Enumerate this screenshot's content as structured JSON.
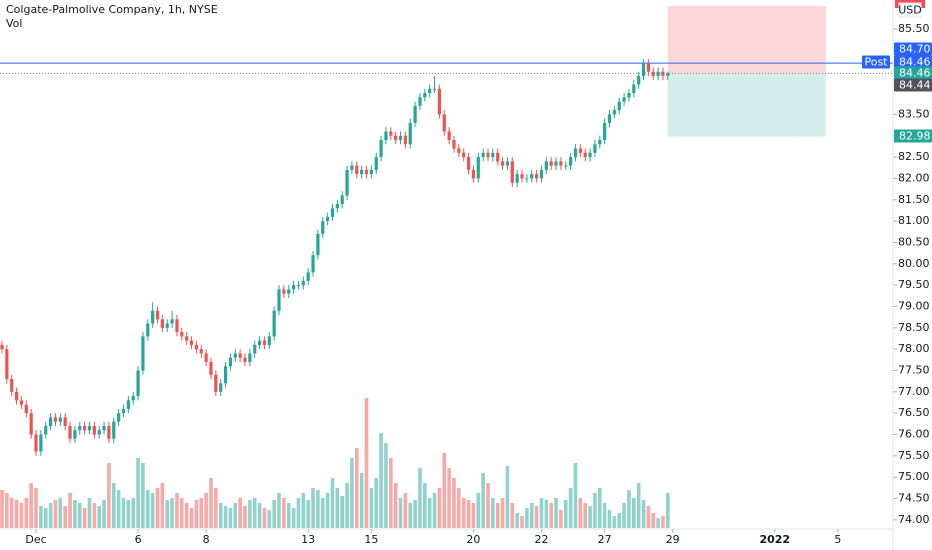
{
  "chart_data": {
    "type": "candlestick",
    "title": "Colgate-Palmolive Company, 1h, NYSE",
    "volume_label": "Vol",
    "currency": "USD",
    "up_color": "#26a69a",
    "down_color": "#ef5350",
    "x": [
      0,
      1,
      2,
      3,
      4,
      5,
      6,
      7,
      8,
      9,
      10,
      11,
      12,
      13,
      14,
      15,
      16,
      17,
      18,
      19,
      20,
      21,
      22,
      23,
      24,
      25,
      26,
      27,
      28,
      29,
      30,
      31,
      32,
      33,
      34,
      35,
      36,
      37,
      38,
      39,
      40,
      41,
      42,
      43,
      44,
      45,
      46,
      47,
      48,
      49,
      50,
      51,
      52,
      53,
      54,
      55,
      56,
      57,
      58,
      59,
      60,
      61,
      62,
      63,
      64,
      65,
      66,
      67,
      68,
      69,
      70,
      71,
      72,
      73,
      74,
      75,
      76,
      77,
      78,
      79,
      80,
      81,
      82,
      83,
      84,
      85,
      86,
      87,
      88,
      89,
      90,
      91,
      92,
      93,
      94,
      95,
      96,
      97,
      98,
      99,
      100,
      101,
      102,
      103,
      104,
      105,
      106,
      107,
      108,
      109,
      110,
      111,
      112,
      113,
      114,
      115,
      116,
      117,
      118,
      119,
      120,
      121,
      122,
      123,
      124,
      125,
      126,
      127,
      128,
      129,
      130,
      131,
      132,
      133,
      134,
      135,
      136,
      137
    ],
    "open": [
      78.1,
      78.0,
      77.3,
      77.0,
      76.8,
      76.7,
      76.5,
      76.0,
      75.6,
      76.0,
      76.2,
      76.4,
      76.3,
      76.4,
      76.2,
      75.9,
      76.1,
      76.2,
      76.1,
      76.2,
      76.0,
      76.1,
      76.2,
      75.9,
      76.3,
      76.5,
      76.6,
      76.8,
      76.9,
      77.5,
      78.3,
      78.6,
      78.9,
      78.7,
      78.5,
      78.6,
      78.7,
      78.4,
      78.3,
      78.2,
      78.1,
      78.0,
      77.9,
      77.7,
      77.4,
      77.0,
      77.2,
      77.6,
      77.8,
      77.9,
      77.8,
      77.7,
      77.9,
      78.1,
      78.2,
      78.1,
      78.3,
      78.9,
      79.4,
      79.3,
      79.4,
      79.5,
      79.5,
      79.6,
      79.8,
      80.2,
      80.7,
      81.0,
      81.1,
      81.3,
      81.4,
      81.6,
      82.2,
      82.3,
      82.1,
      82.2,
      82.1,
      82.2,
      82.5,
      82.9,
      83.1,
      83.0,
      82.9,
      83.0,
      82.8,
      83.3,
      83.7,
      83.9,
      84.0,
      84.1,
      84.1,
      83.5,
      83.1,
      82.9,
      82.7,
      82.6,
      82.5,
      82.2,
      82.0,
      82.5,
      82.6,
      82.5,
      82.6,
      82.4,
      82.3,
      82.4,
      81.9,
      82.1,
      82.0,
      82.0,
      82.1,
      82.0,
      82.2,
      82.4,
      82.3,
      82.4,
      82.3,
      82.3,
      82.5,
      82.7,
      82.6,
      82.5,
      82.6,
      82.8,
      82.9,
      83.3,
      83.5,
      83.6,
      83.8,
      83.9,
      84.0,
      84.2,
      84.4,
      84.7,
      84.5,
      84.4,
      84.5,
      84.4
    ],
    "high": [
      78.2,
      78.1,
      77.4,
      77.1,
      76.9,
      76.8,
      76.6,
      76.1,
      76.1,
      76.3,
      76.5,
      76.5,
      76.5,
      76.5,
      76.3,
      76.2,
      76.3,
      76.3,
      76.3,
      76.3,
      76.2,
      76.3,
      76.3,
      76.4,
      76.6,
      76.7,
      76.9,
      77.0,
      77.6,
      78.4,
      78.7,
      79.1,
      79.0,
      78.8,
      78.7,
      78.9,
      78.8,
      78.5,
      78.4,
      78.3,
      78.2,
      78.1,
      78.0,
      77.8,
      77.5,
      77.3,
      77.7,
      77.9,
      78.0,
      78.0,
      77.9,
      78.0,
      78.2,
      78.3,
      78.3,
      78.4,
      79.0,
      79.5,
      79.5,
      79.5,
      79.6,
      79.6,
      79.7,
      79.9,
      80.3,
      80.8,
      81.1,
      81.2,
      81.4,
      81.5,
      81.7,
      82.3,
      82.4,
      82.4,
      82.3,
      82.3,
      82.3,
      82.6,
      83.0,
      83.2,
      83.2,
      83.1,
      83.1,
      83.1,
      83.4,
      83.8,
      84.0,
      84.1,
      84.2,
      84.4,
      84.2,
      83.6,
      83.2,
      83.0,
      82.8,
      82.7,
      82.6,
      82.3,
      82.6,
      82.7,
      82.7,
      82.7,
      82.7,
      82.5,
      82.5,
      82.5,
      82.2,
      82.2,
      82.1,
      82.2,
      82.2,
      82.3,
      82.5,
      82.5,
      82.5,
      82.5,
      82.4,
      82.6,
      82.8,
      82.8,
      82.7,
      82.7,
      82.9,
      83.0,
      83.4,
      83.6,
      83.7,
      83.9,
      84.0,
      84.1,
      84.3,
      84.5,
      84.8,
      84.8,
      84.6,
      84.6,
      84.6,
      84.5
    ],
    "low": [
      77.9,
      77.2,
      76.9,
      76.7,
      76.6,
      76.4,
      75.9,
      75.5,
      75.5,
      75.9,
      76.1,
      76.2,
      76.2,
      76.1,
      75.8,
      75.8,
      76.0,
      76.0,
      76.0,
      75.9,
      75.9,
      76.0,
      75.8,
      75.8,
      76.2,
      76.4,
      76.5,
      76.7,
      76.8,
      77.4,
      78.2,
      78.5,
      78.6,
      78.4,
      78.4,
      78.5,
      78.3,
      78.2,
      78.1,
      78.0,
      77.9,
      77.8,
      77.6,
      77.3,
      76.9,
      76.9,
      77.1,
      77.5,
      77.7,
      77.7,
      77.6,
      77.6,
      77.8,
      78.0,
      78.0,
      78.0,
      78.2,
      78.8,
      79.2,
      79.2,
      79.3,
      79.4,
      79.4,
      79.5,
      79.7,
      80.1,
      80.6,
      80.9,
      81.0,
      81.2,
      81.3,
      81.5,
      82.1,
      82.0,
      82.0,
      82.0,
      82.0,
      82.1,
      82.4,
      82.8,
      82.9,
      82.8,
      82.8,
      82.7,
      82.7,
      83.2,
      83.6,
      83.8,
      83.9,
      84.0,
      83.4,
      83.0,
      82.8,
      82.6,
      82.5,
      82.4,
      82.1,
      81.9,
      81.9,
      82.4,
      82.4,
      82.4,
      82.3,
      82.2,
      82.2,
      81.8,
      81.8,
      81.9,
      81.9,
      81.9,
      81.9,
      81.9,
      82.1,
      82.2,
      82.2,
      82.2,
      82.2,
      82.2,
      82.4,
      82.5,
      82.4,
      82.4,
      82.5,
      82.7,
      82.8,
      83.2,
      83.4,
      83.5,
      83.7,
      83.8,
      83.9,
      84.1,
      84.3,
      84.4,
      84.3,
      84.3,
      84.3,
      84.3
    ],
    "close": [
      78.0,
      77.3,
      77.0,
      76.8,
      76.7,
      76.5,
      76.0,
      75.6,
      76.0,
      76.2,
      76.4,
      76.3,
      76.4,
      76.2,
      75.9,
      76.1,
      76.2,
      76.1,
      76.2,
      76.0,
      76.1,
      76.2,
      75.9,
      76.3,
      76.5,
      76.6,
      76.8,
      76.9,
      77.5,
      78.3,
      78.6,
      78.9,
      78.7,
      78.5,
      78.6,
      78.7,
      78.4,
      78.3,
      78.2,
      78.1,
      78.0,
      77.9,
      77.7,
      77.4,
      77.0,
      77.2,
      77.6,
      77.8,
      77.9,
      77.8,
      77.7,
      77.9,
      78.1,
      78.2,
      78.1,
      78.3,
      78.9,
      79.4,
      79.3,
      79.4,
      79.5,
      79.5,
      79.6,
      79.8,
      80.2,
      80.7,
      81.0,
      81.1,
      81.3,
      81.4,
      81.6,
      82.2,
      82.3,
      82.1,
      82.2,
      82.1,
      82.2,
      82.5,
      82.9,
      83.1,
      83.0,
      82.9,
      83.0,
      82.8,
      83.3,
      83.7,
      83.9,
      84.0,
      84.1,
      84.1,
      83.5,
      83.1,
      82.9,
      82.7,
      82.6,
      82.5,
      82.2,
      82.0,
      82.5,
      82.6,
      82.5,
      82.6,
      82.4,
      82.3,
      82.4,
      81.9,
      82.1,
      82.0,
      82.0,
      82.1,
      82.0,
      82.2,
      82.4,
      82.3,
      82.4,
      82.3,
      82.3,
      82.5,
      82.7,
      82.6,
      82.5,
      82.6,
      82.8,
      82.9,
      83.3,
      83.5,
      83.6,
      83.8,
      83.9,
      84.0,
      84.2,
      84.4,
      84.7,
      84.5,
      84.4,
      84.5,
      84.4,
      84.46
    ],
    "volume": [
      38,
      35,
      30,
      28,
      25,
      30,
      45,
      40,
      22,
      20,
      25,
      28,
      30,
      22,
      35,
      28,
      25,
      20,
      30,
      25,
      22,
      28,
      65,
      45,
      38,
      30,
      28,
      30,
      70,
      65,
      38,
      35,
      40,
      45,
      28,
      30,
      35,
      30,
      25,
      20,
      28,
      30,
      35,
      50,
      40,
      25,
      22,
      20,
      25,
      30,
      22,
      28,
      30,
      25,
      20,
      18,
      28,
      35,
      30,
      25,
      20,
      30,
      35,
      28,
      40,
      38,
      30,
      35,
      50,
      40,
      32,
      45,
      70,
      80,
      55,
      130,
      40,
      50,
      95,
      85,
      70,
      45,
      30,
      35,
      25,
      28,
      60,
      45,
      30,
      35,
      40,
      75,
      60,
      50,
      40,
      30,
      28,
      25,
      35,
      55,
      45,
      30,
      25,
      30,
      62,
      25,
      15,
      12,
      20,
      25,
      22,
      30,
      28,
      25,
      30,
      18,
      28,
      40,
      65,
      30,
      25,
      22,
      35,
      40,
      25,
      18,
      12,
      15,
      25,
      38,
      30,
      45,
      28,
      22,
      15,
      10,
      12,
      35
    ],
    "xlim": [
      -0.41,
      183.33
    ],
    "xticks": [
      {
        "value": 7,
        "label": "Dec"
      },
      {
        "value": 28,
        "label": "6"
      },
      {
        "value": 42,
        "label": "8"
      },
      {
        "value": 63,
        "label": "13"
      },
      {
        "value": 76,
        "label": "15"
      },
      {
        "value": 97,
        "label": "20"
      },
      {
        "value": 111,
        "label": "22"
      },
      {
        "value": 124,
        "label": "27"
      },
      {
        "value": 138,
        "label": "29"
      },
      {
        "value": 159,
        "label": "2022"
      },
      {
        "value": 172,
        "label": "5"
      }
    ],
    "ylim": [
      73.81,
      86.18
    ],
    "yticks": [
      {
        "value": 74,
        "label": "74.00"
      },
      {
        "value": 74.5,
        "label": "74.50"
      },
      {
        "value": 75,
        "label": "75.00"
      },
      {
        "value": 75.5,
        "label": "75.50"
      },
      {
        "value": 76,
        "label": "76.00"
      },
      {
        "value": 76.5,
        "label": "76.50"
      },
      {
        "value": 77,
        "label": "77.00"
      },
      {
        "value": 77.5,
        "label": "77.50"
      },
      {
        "value": 78,
        "label": "78.00"
      },
      {
        "value": 78.5,
        "label": "78.50"
      },
      {
        "value": 79,
        "label": "79.00"
      },
      {
        "value": 79.5,
        "label": "79.50"
      },
      {
        "value": 80,
        "label": "80.00"
      },
      {
        "value": 80.5,
        "label": "80.50"
      },
      {
        "value": 81,
        "label": "81.00"
      },
      {
        "value": 81.5,
        "label": "81.50"
      },
      {
        "value": 82,
        "label": "82.00"
      },
      {
        "value": 82.5,
        "label": "82.50"
      },
      {
        "value": 83,
        "label": "83.00"
      },
      {
        "value": 83.5,
        "label": "83.50"
      },
      {
        "value": 85.5,
        "label": "85.50"
      }
    ],
    "vol_ylim": [
      0,
      528
    ],
    "position": {
      "start": 137,
      "end": 169.5,
      "entry": 84.46,
      "stop": 86.04,
      "target": 82.98,
      "stop_color": "#f23645",
      "target_color": "#26a69a"
    },
    "lines": [
      {
        "value": 84.7,
        "color": "#2962ff"
      },
      {
        "value": 84.46,
        "color": "#787b86"
      }
    ],
    "price_tags": [
      {
        "text": "84.70",
        "color": "#2962ff"
      },
      {
        "text": "Post",
        "color": "#2962ff"
      },
      {
        "text": "84.46",
        "color": "#2962ff"
      },
      {
        "text": "84.46",
        "color": "#26a69a"
      },
      {
        "text": "84.44",
        "color": "#50535e"
      },
      {
        "text": "82.98",
        "color": "#26a69a"
      }
    ]
  }
}
